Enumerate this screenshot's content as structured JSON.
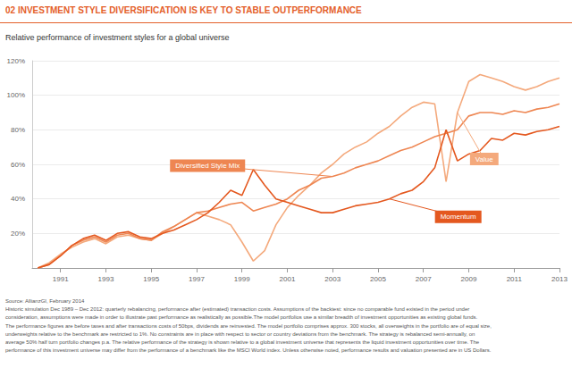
{
  "chart_data": {
    "type": "line",
    "title": "02 INVESTMENT STYLE DIVERSIFICATION IS KEY TO STABLE OUTPERFORMANCE",
    "subtitle": "Relative performance of investment styles for a global universe",
    "source": "Source: AllianzGI, February 2014",
    "notes": [
      "Historic simulation Dec 1989 – Dec 2012: quarterly rebalancing, performance after (estimated) transaction costs. Assumptions of the backtest: since no comparable fund existed in the period under",
      "consideration, assumptions were made in order to illustrate past performance as realistically as possible.The model portfolios use a similar breadth of investment opportunities as existing global funds.",
      "The performance figures are before taxes and after transactions costs of 50bps, dividends are reinvested. The model portfolio comprises approx. 300 stocks, all overweights in the portfolio are of equal size,",
      "underweights relative to the benchmark are restricted to 1%. No constraints are in place with respect to sector or country deviations from the benchmark. The strategy is rebalanced semi-annually, on",
      "average 50% half turn portfolio changes p.a. The relative performance of the strategy is shown relative to a global investment universe that represents the liquid investment opportunities over time. The",
      "performance of this investment universe may differ from the performance of a benchmark like the MSCI World index. Unless otherwise noted, performance results and valuation presented are in US Dollars."
    ],
    "x": [
      1990,
      1990.5,
      1991,
      1991.5,
      1992,
      1992.5,
      1993,
      1993.5,
      1994,
      1994.5,
      1995,
      1995.5,
      1996,
      1996.5,
      1997,
      1997.5,
      1998,
      1998.5,
      1999,
      1999.5,
      2000,
      2000.5,
      2001,
      2001.5,
      2002,
      2002.5,
      2003,
      2003.5,
      2004,
      2004.5,
      2005,
      2005.5,
      2006,
      2006.5,
      2007,
      2007.5,
      2008,
      2008.5,
      2009,
      2009.5,
      2010,
      2010.5,
      2011,
      2011.5,
      2012,
      2012.5,
      2013
    ],
    "series": [
      {
        "name": "Value",
        "color": "#f4a97c",
        "values": [
          0,
          3,
          8,
          12,
          15,
          17,
          14,
          18,
          19,
          17,
          16,
          20,
          24,
          28,
          32,
          30,
          28,
          25,
          15,
          4,
          10,
          25,
          35,
          42,
          48,
          55,
          60,
          66,
          70,
          73,
          78,
          82,
          88,
          93,
          96,
          95,
          50,
          90,
          108,
          112,
          110,
          108,
          105,
          103,
          105,
          108,
          110
        ]
      },
      {
        "name": "Diversified Style Mix",
        "color": "#ee8652",
        "values": [
          0,
          2,
          7,
          13,
          16,
          18,
          15,
          19,
          20,
          17,
          16,
          21,
          24,
          28,
          32,
          33,
          35,
          37,
          38,
          33,
          35,
          37,
          40,
          45,
          48,
          52,
          53,
          55,
          58,
          60,
          62,
          65,
          68,
          70,
          73,
          76,
          78,
          80,
          88,
          90,
          90,
          89,
          91,
          90,
          92,
          93,
          95
        ]
      },
      {
        "name": "Momentum",
        "color": "#e4581f",
        "values": [
          0,
          2,
          7,
          13,
          17,
          19,
          16,
          20,
          21,
          18,
          17,
          20,
          22,
          25,
          28,
          32,
          38,
          45,
          42,
          57,
          48,
          40,
          38,
          36,
          34,
          32,
          32,
          34,
          36,
          37,
          38,
          40,
          43,
          45,
          50,
          58,
          80,
          62,
          66,
          68,
          75,
          74,
          78,
          77,
          79,
          80,
          82
        ]
      }
    ],
    "xlim": [
      1989.75,
      2013
    ],
    "xticks": [
      1991,
      1993,
      1995,
      1997,
      1999,
      2001,
      2003,
      2005,
      2007,
      2009,
      2011,
      2013
    ],
    "ylim": [
      0,
      120
    ],
    "yticks": [
      {
        "value": 20,
        "label": "20%"
      },
      {
        "value": 40,
        "label": "40%"
      },
      {
        "value": 60,
        "label": "60%"
      },
      {
        "value": 80,
        "label": "80%"
      },
      {
        "value": 100,
        "label": "100%"
      },
      {
        "value": 120,
        "label": "120%"
      }
    ],
    "grid": true
  }
}
